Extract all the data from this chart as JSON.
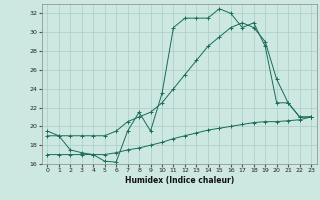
{
  "xlabel": "Humidex (Indice chaleur)",
  "bg_color": "#cce8e0",
  "grid_color": "#aacccc",
  "line_color": "#1a6b5a",
  "xlim": [
    -0.5,
    23.5
  ],
  "ylim": [
    16,
    33
  ],
  "xticks": [
    0,
    1,
    2,
    3,
    4,
    5,
    6,
    7,
    8,
    9,
    10,
    11,
    12,
    13,
    14,
    15,
    16,
    17,
    18,
    19,
    20,
    21,
    22,
    23
  ],
  "yticks": [
    16,
    18,
    20,
    22,
    24,
    26,
    28,
    30,
    32
  ],
  "line1_x": [
    0,
    1,
    2,
    3,
    4,
    5,
    6,
    7,
    8,
    9,
    10,
    11,
    12,
    13,
    14,
    15,
    16,
    17,
    18,
    19,
    20,
    21,
    22,
    23
  ],
  "line1_y": [
    19.5,
    19.0,
    17.5,
    17.2,
    17.0,
    16.3,
    16.2,
    19.5,
    21.5,
    19.5,
    23.5,
    30.5,
    31.5,
    31.5,
    31.5,
    32.5,
    32.0,
    30.5,
    31.0,
    28.5,
    22.5,
    22.5,
    21.0,
    21.0
  ],
  "line2_x": [
    0,
    1,
    2,
    3,
    4,
    5,
    6,
    7,
    8,
    9,
    10,
    11,
    12,
    13,
    14,
    15,
    16,
    17,
    18,
    19,
    20,
    21,
    22,
    23
  ],
  "line2_y": [
    19.0,
    19.0,
    19.0,
    19.0,
    19.0,
    19.0,
    19.5,
    20.5,
    21.0,
    21.5,
    22.5,
    24.0,
    25.5,
    27.0,
    28.5,
    29.5,
    30.5,
    31.0,
    30.5,
    29.0,
    25.0,
    22.5,
    21.0,
    21.0
  ],
  "line3_x": [
    0,
    1,
    2,
    3,
    4,
    5,
    6,
    7,
    8,
    9,
    10,
    11,
    12,
    13,
    14,
    15,
    16,
    17,
    18,
    19,
    20,
    21,
    22,
    23
  ],
  "line3_y": [
    17.0,
    17.0,
    17.0,
    17.0,
    17.0,
    17.0,
    17.2,
    17.5,
    17.7,
    18.0,
    18.3,
    18.7,
    19.0,
    19.3,
    19.6,
    19.8,
    20.0,
    20.2,
    20.4,
    20.5,
    20.5,
    20.6,
    20.7,
    21.0
  ]
}
